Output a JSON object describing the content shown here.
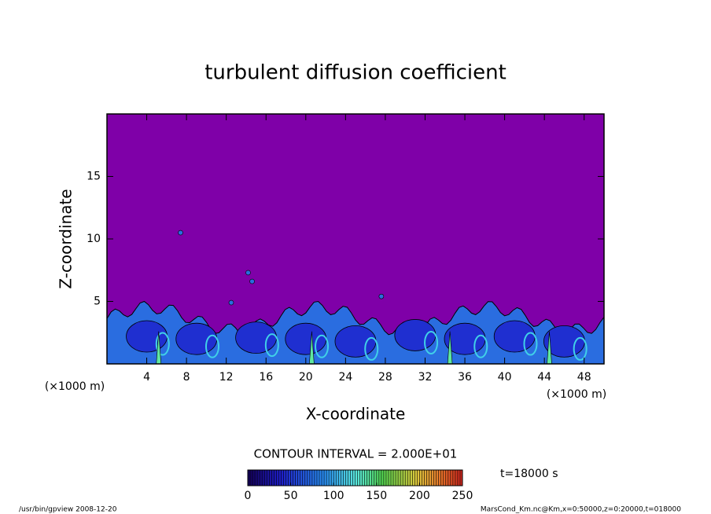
{
  "chart_data": {
    "type": "contour",
    "title": "turbulent diffusion coefficient",
    "x_label": "X-coordinate",
    "y_label": "Z-coordinate",
    "x_unit": "(×1000 m)",
    "y_unit": "(×1000 m)",
    "xlim": [
      0,
      50
    ],
    "ylim": [
      0,
      20
    ],
    "xticks": [
      4,
      8,
      12,
      16,
      20,
      24,
      28,
      32,
      36,
      40,
      44,
      48
    ],
    "yticks": [
      5,
      10,
      15
    ],
    "contour_interval": "CONTOUR INTERVAL = 2.000E+01",
    "colorbar": {
      "lim": [
        0,
        250
      ],
      "ticks": [
        0,
        50,
        100,
        150,
        200,
        250
      ]
    },
    "time_label": "t=18000 s",
    "footer_left": "/usr/bin/gpview   2008-12-20",
    "footer_right": "MarsCond_Km.nc@Km,x=0:50000,z=0:20000,t=018000"
  }
}
